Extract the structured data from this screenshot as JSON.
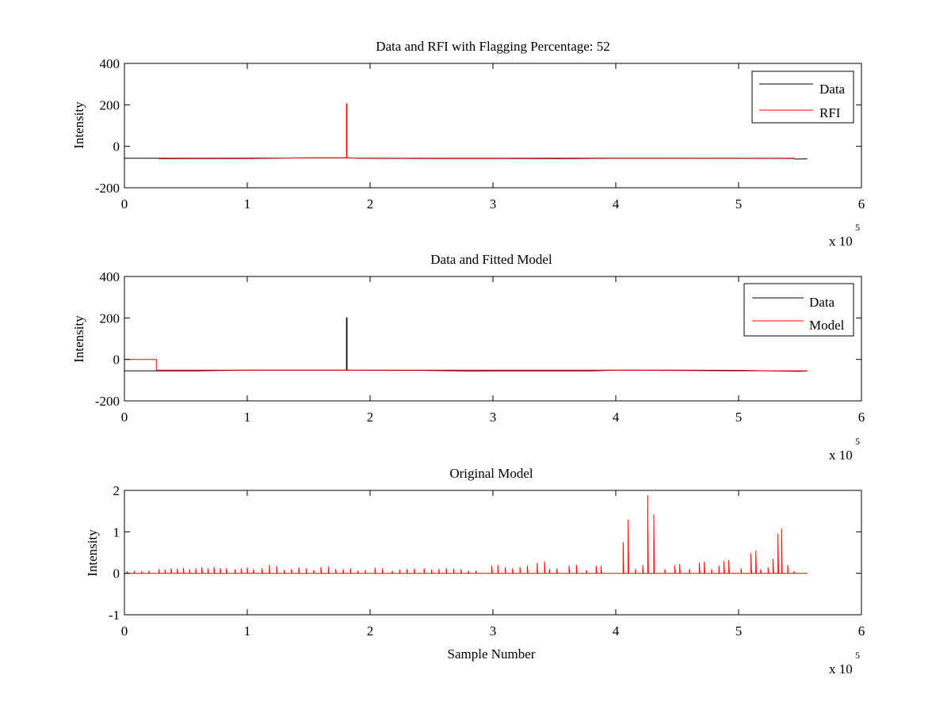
{
  "colors": {
    "data": "#000000",
    "red": "#ff0000",
    "axes": "#000000",
    "background": "#ffffff"
  },
  "chart_data": [
    {
      "type": "line",
      "title": "Data and RFI with Flagging Percentage: 52",
      "xlabel": "",
      "ylabel": "Intensity",
      "xlim": [
        0,
        6
      ],
      "ylim": [
        -200,
        400
      ],
      "xticks": [
        "0",
        "1",
        "2",
        "3",
        "4",
        "5",
        "6"
      ],
      "yticks": [
        "-200",
        "0",
        "200",
        "400"
      ],
      "x_multiplier": {
        "base": "x 10",
        "exponent": "5"
      },
      "legend": {
        "position": "top-right",
        "entries": [
          "Data",
          "RFI"
        ]
      },
      "series": [
        {
          "name": "Data",
          "color": "#000000",
          "x": [
            0,
            0.5,
            1.0,
            1.5,
            1.8,
            1.81,
            1.9,
            2.4,
            3.0,
            3.5,
            4.0,
            4.4,
            5.0,
            5.45,
            5.46,
            5.56
          ],
          "y": [
            -58,
            -58,
            -57,
            -56,
            -56,
            -56,
            -57,
            -58,
            -58,
            -58,
            -57,
            -57,
            -58,
            -58,
            -62,
            -60
          ]
        },
        {
          "name": "RFI",
          "color": "#ff0000",
          "x": [
            0.28,
            1.0,
            1.5,
            1.808,
            1.808,
            1.812,
            1.812,
            1.9,
            2.4,
            3.0,
            3.55,
            4.0,
            4.4,
            5.0,
            5.45
          ],
          "y": [
            -60,
            -59,
            -56,
            -56,
            205,
            205,
            -56,
            -58,
            -59,
            -59,
            -60,
            -58,
            -58,
            -58,
            -59
          ]
        }
      ]
    },
    {
      "type": "line",
      "title": "Data and Fitted Model",
      "xlabel": "",
      "ylabel": "Intensity",
      "xlim": [
        0,
        6
      ],
      "ylim": [
        -200,
        400
      ],
      "xticks": [
        "0",
        "1",
        "2",
        "3",
        "4",
        "5",
        "6"
      ],
      "yticks": [
        "-200",
        "0",
        "200",
        "400"
      ],
      "x_multiplier": {
        "base": "x 10",
        "exponent": "5"
      },
      "legend": {
        "position": "top-right",
        "entries": [
          "Data",
          "Model"
        ]
      },
      "series": [
        {
          "name": "Data",
          "color": "#000000",
          "x": [
            0,
            0.28,
            0.6,
            1.0,
            1.5,
            1.808,
            1.808,
            1.812,
            1.812,
            2.4,
            2.8,
            3.0,
            3.5,
            3.8,
            4.0,
            4.5,
            5.0,
            5.5,
            5.56
          ],
          "y": [
            -55,
            -55,
            -55,
            -52,
            -52,
            -52,
            200,
            200,
            -52,
            -53,
            -56,
            -55,
            -55,
            -55,
            -52,
            -52,
            -53,
            -58,
            -55
          ]
        },
        {
          "name": "Model",
          "color": "#ff0000",
          "x": [
            0,
            0.26,
            0.26,
            1.0,
            2.0,
            3.0,
            4.0,
            5.0,
            5.56
          ],
          "y": [
            0,
            0,
            -52,
            -52,
            -52,
            -52,
            -52,
            -55,
            -55
          ]
        }
      ]
    },
    {
      "type": "line",
      "title": "Original Model",
      "xlabel": "Sample Number",
      "ylabel": "Intensity",
      "xlim": [
        0,
        6
      ],
      "ylim": [
        -1,
        2
      ],
      "xticks": [
        "0",
        "1",
        "2",
        "3",
        "4",
        "5",
        "6"
      ],
      "yticks": [
        "-1",
        "0",
        "1",
        "2"
      ],
      "x_multiplier": {
        "base": "x 10",
        "exponent": "5"
      },
      "series": [
        {
          "name": "Original Model",
          "color": "#ff0000",
          "baseline": 0,
          "x_end": 5.56,
          "spike_x": [
            0.02,
            0.08,
            0.14,
            0.2,
            0.28,
            0.33,
            0.38,
            0.43,
            0.48,
            0.53,
            0.58,
            0.63,
            0.68,
            0.73,
            0.78,
            0.83,
            0.9,
            0.95,
            1.0,
            1.05,
            1.12,
            1.18,
            1.24,
            1.3,
            1.36,
            1.42,
            1.48,
            1.54,
            1.6,
            1.66,
            1.72,
            1.78,
            1.84,
            1.9,
            1.96,
            2.04,
            2.1,
            2.18,
            2.24,
            2.3,
            2.36,
            2.44,
            2.5,
            2.56,
            2.62,
            2.68,
            2.74,
            2.8,
            2.86,
            2.99,
            3.04,
            3.1,
            3.16,
            3.22,
            3.28,
            3.36,
            3.42,
            3.46,
            3.52,
            3.62,
            3.68,
            3.76,
            3.84,
            3.88,
            4.06,
            4.1,
            4.16,
            4.22,
            4.26,
            4.31,
            4.4,
            4.48,
            4.52,
            4.6,
            4.68,
            4.72,
            4.78,
            4.84,
            4.88,
            4.92,
            5.02,
            5.1,
            5.14,
            5.18,
            5.24,
            5.28,
            5.32,
            5.35,
            5.4,
            5.45
          ],
          "spike_y": [
            0.05,
            0.06,
            0.05,
            0.06,
            0.1,
            0.09,
            0.12,
            0.11,
            0.13,
            0.1,
            0.12,
            0.14,
            0.12,
            0.15,
            0.13,
            0.12,
            0.1,
            0.12,
            0.14,
            0.1,
            0.12,
            0.2,
            0.18,
            0.08,
            0.1,
            0.14,
            0.12,
            0.08,
            0.15,
            0.16,
            0.1,
            0.1,
            0.12,
            0.06,
            0.08,
            0.13,
            0.12,
            0.06,
            0.09,
            0.1,
            0.11,
            0.12,
            0.09,
            0.1,
            0.12,
            0.11,
            0.1,
            0.06,
            0.06,
            0.18,
            0.2,
            0.14,
            0.12,
            0.15,
            0.18,
            0.25,
            0.29,
            0.1,
            0.12,
            0.18,
            0.2,
            0.08,
            0.18,
            0.18,
            0.75,
            1.3,
            0.1,
            0.2,
            1.88,
            1.42,
            0.1,
            0.2,
            0.22,
            0.1,
            0.25,
            0.28,
            0.1,
            0.18,
            0.3,
            0.32,
            0.12,
            0.48,
            0.55,
            0.1,
            0.14,
            0.35,
            0.95,
            1.08,
            0.2,
            0.05
          ]
        }
      ]
    }
  ]
}
